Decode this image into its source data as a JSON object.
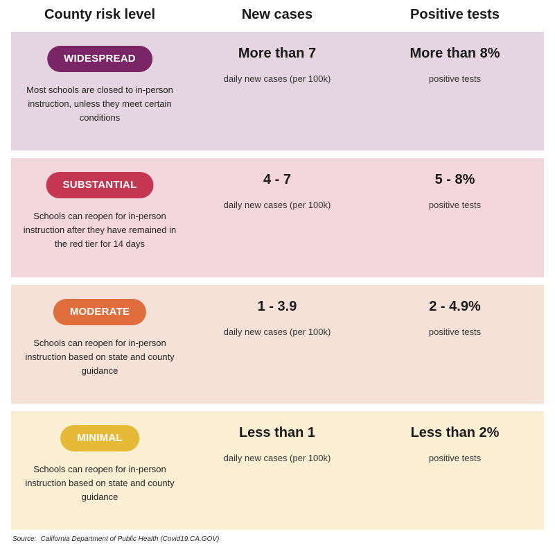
{
  "header": {
    "col1": "County risk level",
    "col2": "New cases",
    "col3": "Positive tests"
  },
  "tiers": [
    {
      "level": "WIDESPREAD",
      "badge_color": "#7a2565",
      "row_bg": "#e5d4e1",
      "description": "Most schools are closed to in-person instruction, unless they meet certain conditions",
      "new_cases": "More than 7",
      "new_cases_label": "daily new cases (per 100k)",
      "positive_tests": "More than 8%",
      "positive_tests_label": "positive tests"
    },
    {
      "level": "SUBSTANTIAL",
      "badge_color": "#c53652",
      "row_bg": "#f4d7dd",
      "description": "Schools can reopen for in-person instruction after they have remained in the red tier for 14 days",
      "new_cases": "4 - 7",
      "new_cases_label": "daily new cases (per 100k)",
      "positive_tests": "5 - 8%",
      "positive_tests_label": "positive tests"
    },
    {
      "level": "MODERATE",
      "badge_color": "#e06d3b",
      "row_bg": "#f5e1d7",
      "description": "Schools can reopen for in-person instruction based on state and county guidance",
      "new_cases": "1 - 3.9",
      "new_cases_label": "daily new cases (per 100k)",
      "positive_tests": "2 - 4.9%",
      "positive_tests_label": "positive tests"
    },
    {
      "level": "MINIMAL",
      "badge_color": "#e6b936",
      "row_bg": "#faefd3",
      "description": "Schools can reopen for in-person instruction based on state and county guidance",
      "new_cases": "Less than 1",
      "new_cases_label": "daily new cases (per 100k)",
      "positive_tests": "Less than 2%",
      "positive_tests_label": "positive tests"
    }
  ],
  "source": {
    "label": "Source:",
    "text": "California Department of Public Health (Covid19.CA.GOV)"
  }
}
